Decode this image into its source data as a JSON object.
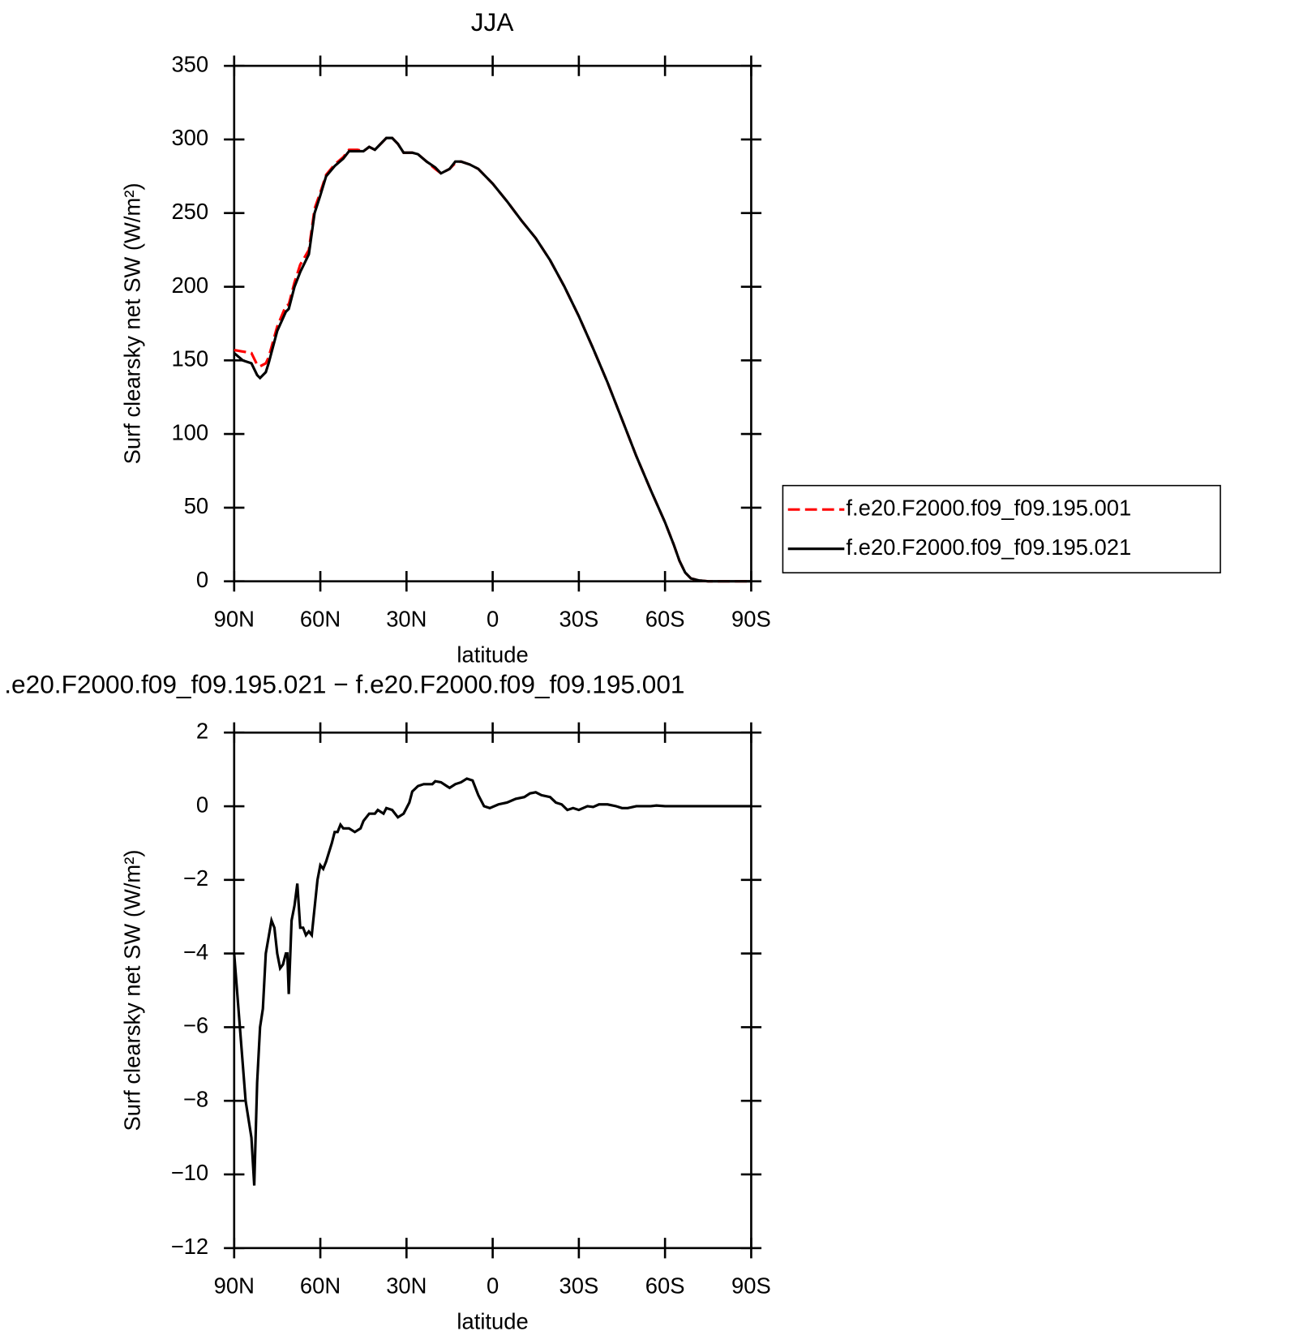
{
  "chart_data": [
    {
      "type": "line",
      "title": "JJA",
      "xlabel": "latitude",
      "ylabel": "Surf clearsky net SW (W/m²)",
      "x": [
        90,
        87,
        84,
        82,
        81,
        79,
        78,
        75,
        72,
        71,
        69,
        67,
        64,
        62,
        60,
        58,
        55,
        52,
        50,
        47,
        45,
        43,
        41,
        39,
        37,
        35,
        33,
        31,
        28,
        26,
        23,
        20,
        18,
        15,
        13,
        11,
        8,
        5,
        0,
        -5,
        -10,
        -15,
        -20,
        -25,
        -30,
        -35,
        -40,
        -45,
        -50,
        -55,
        -60,
        -63,
        -65,
        -67,
        -69,
        -72,
        -75,
        -80,
        -85,
        -90
      ],
      "series": [
        {
          "name": "f.e20.F2000.f09_f09.195.001",
          "color": "#ff0000",
          "dashed": true,
          "values": [
            157,
            156,
            155,
            147,
            146,
            148,
            152,
            173,
            187,
            188,
            203,
            215,
            225,
            253,
            264,
            276,
            283,
            288,
            293,
            293,
            292,
            295,
            293,
            297,
            301,
            301,
            297,
            291,
            291,
            290,
            285,
            280,
            277,
            280,
            284,
            285,
            283,
            280,
            270,
            258,
            245,
            233,
            218,
            200,
            180,
            158,
            135,
            110,
            85,
            62,
            40,
            25,
            14,
            6,
            2,
            0.5,
            0,
            0,
            0,
            0
          ]
        },
        {
          "name": "f.e20.F2000.f09_f09.195.021",
          "color": "#000000",
          "dashed": false,
          "values": [
            155,
            150,
            148,
            140,
            138,
            142,
            148,
            170,
            183,
            185,
            200,
            210,
            222,
            250,
            262,
            275,
            282,
            287,
            292,
            292,
            292,
            295,
            293,
            297,
            301,
            301,
            297,
            291,
            291,
            290,
            285,
            281,
            277,
            280,
            285,
            285,
            283,
            280,
            270,
            258,
            245,
            233,
            218,
            200,
            180,
            158,
            135,
            110,
            85,
            62,
            40,
            25,
            14,
            6,
            2,
            0.5,
            0,
            0,
            0,
            0
          ]
        }
      ],
      "xlim": [
        90,
        -90
      ],
      "xticks": [
        {
          "value": 90,
          "label": "90N"
        },
        {
          "value": 60,
          "label": "60N"
        },
        {
          "value": 30,
          "label": "30N"
        },
        0,
        {
          "value": -30,
          "label": "30S"
        },
        {
          "value": -60,
          "label": "60S"
        },
        {
          "value": -90,
          "label": "90S"
        }
      ],
      "ylim": [
        0,
        350
      ],
      "yticks": [
        0,
        50,
        100,
        150,
        200,
        250,
        300,
        350
      ],
      "legend": "right"
    },
    {
      "type": "line",
      "title": ".e20.F2000.f09_f09.195.021 − f.e20.F2000.f09_f09.195.001",
      "xlabel": "latitude",
      "ylabel": "Surf clearsky net SW (W/m²)",
      "x": [
        90,
        88,
        86,
        84,
        83,
        82,
        81,
        80,
        79,
        77,
        76,
        75,
        74,
        73,
        72,
        71.5,
        71,
        70,
        69,
        68,
        67,
        66,
        65,
        64,
        63,
        61,
        60,
        59,
        58,
        56,
        55,
        54,
        53,
        52,
        50,
        48,
        46,
        45,
        43,
        41,
        40,
        38,
        37,
        35,
        33,
        31,
        29,
        28,
        26,
        24,
        21,
        20,
        18,
        16,
        15,
        13,
        11,
        9,
        7,
        5,
        3,
        1,
        -2,
        -5,
        -8,
        -11,
        -13,
        -15,
        -17,
        -20,
        -22,
        -24,
        -26,
        -28,
        -30,
        -33,
        -35,
        -37,
        -40,
        -43,
        -45,
        -47,
        -50,
        -55,
        -57,
        -60,
        -70,
        -90
      ],
      "values": [
        -4,
        -6,
        -8,
        -9,
        -10.3,
        -7.5,
        -6,
        -5.5,
        -4,
        -3.1,
        -3.3,
        -4,
        -4.4,
        -4.3,
        -4,
        -4,
        -5.1,
        -3.1,
        -2.7,
        -2.1,
        -3.3,
        -3.3,
        -3.5,
        -3.4,
        -3.5,
        -2,
        -1.6,
        -1.7,
        -1.5,
        -1,
        -0.7,
        -0.7,
        -0.5,
        -0.6,
        -0.6,
        -0.7,
        -0.6,
        -0.4,
        -0.2,
        -0.2,
        -0.1,
        -0.2,
        -0.05,
        -0.1,
        -0.3,
        -0.2,
        0.1,
        0.4,
        0.55,
        0.6,
        0.6,
        0.68,
        0.65,
        0.55,
        0.5,
        0.6,
        0.65,
        0.75,
        0.7,
        0.3,
        0,
        -0.05,
        0.05,
        0.1,
        0.2,
        0.25,
        0.35,
        0.38,
        0.3,
        0.25,
        0.1,
        0.05,
        -0.1,
        -0.05,
        -0.1,
        0,
        -0.02,
        0.05,
        0.05,
        0,
        -0.05,
        -0.05,
        0,
        0,
        0.02,
        0,
        0,
        0
      ],
      "color": "#000000",
      "xlim": [
        90,
        -90
      ],
      "xticks": [
        {
          "value": 90,
          "label": "90N"
        },
        {
          "value": 60,
          "label": "60N"
        },
        {
          "value": 30,
          "label": "30N"
        },
        0,
        {
          "value": -30,
          "label": "30S"
        },
        {
          "value": -60,
          "label": "60S"
        },
        {
          "value": -90,
          "label": "90S"
        }
      ],
      "ylim": [
        -12,
        2
      ],
      "yticks": [
        {
          "value": 2,
          "label": "2"
        },
        0,
        {
          "value": -2,
          "label": "−2"
        },
        {
          "value": -4,
          "label": "−4"
        },
        {
          "value": -6,
          "label": "−6"
        },
        {
          "value": -8,
          "label": "−8"
        },
        {
          "value": -10,
          "label": "−10"
        },
        {
          "value": -12,
          "label": "−12"
        }
      ]
    }
  ]
}
